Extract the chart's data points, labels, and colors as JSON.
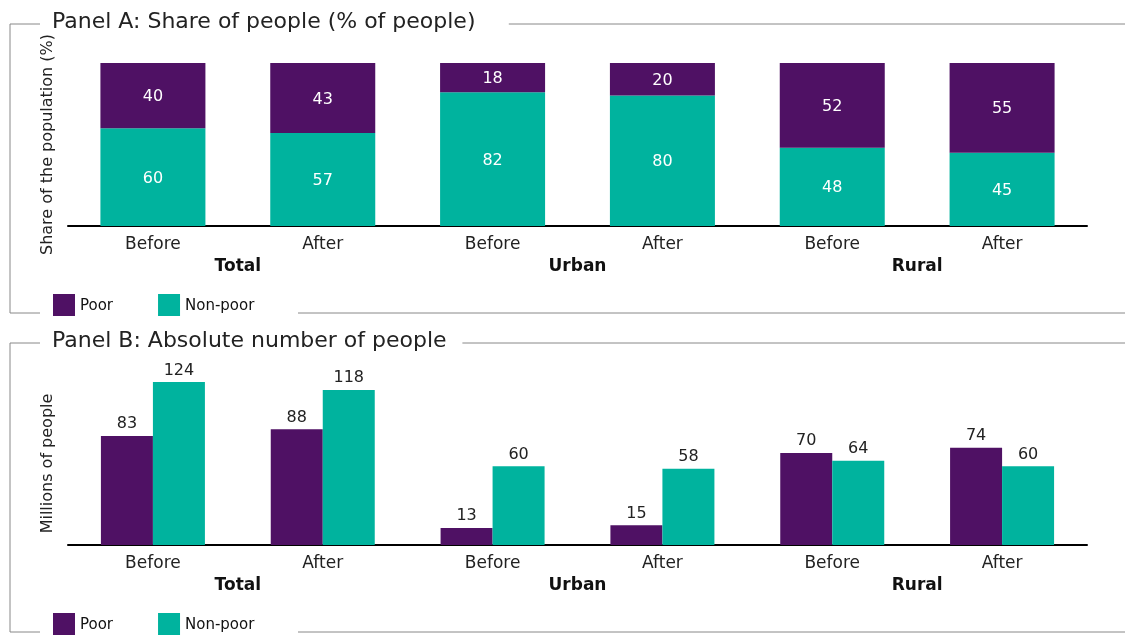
{
  "chart_data": [
    {
      "type": "bar",
      "title": "Panel A: Share of people (% of people)",
      "ylabel": "Share of the population (%)",
      "categories": [
        "Before",
        "After",
        "Before",
        "After",
        "Before",
        "After"
      ],
      "annotations": [
        "Total",
        "Urban",
        "Rural"
      ],
      "stacked": true,
      "data_labels": true,
      "tick_labels": "x",
      "grid": false,
      "legend": "bottom left",
      "series": [
        {
          "name": "Non-poor",
          "color": "#00b39e",
          "values": [
            60,
            57,
            82,
            80,
            48,
            45
          ]
        },
        {
          "name": "Poor",
          "color": "#4f1164",
          "values": [
            40,
            43,
            18,
            20,
            52,
            55
          ]
        }
      ]
    },
    {
      "type": "bar",
      "title": "Panel B: Absolute number of people",
      "ylabel": "Millions of people",
      "categories": [
        "Before",
        "After",
        "Before",
        "After",
        "Before",
        "After"
      ],
      "annotations": [
        "Total",
        "Urban",
        "Rural"
      ],
      "data_labels": true,
      "tick_labels": "x",
      "grid": false,
      "legend": "bottom left",
      "series": [
        {
          "name": "Poor",
          "color": "#4f1164",
          "values": [
            83,
            88,
            13,
            15,
            70,
            74
          ]
        },
        {
          "name": "Non-poor",
          "color": "#00b39e",
          "values": [
            124,
            118,
            60,
            58,
            64,
            60
          ]
        }
      ]
    }
  ]
}
